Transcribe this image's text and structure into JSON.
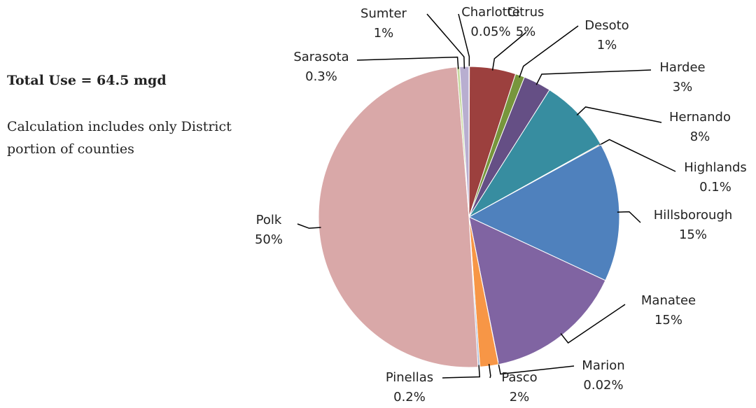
{
  "chart_data": {
    "type": "pie",
    "annotations": [
      "Total Use = 64.5 mgd",
      "Calculation includes only District",
      "portion of counties"
    ],
    "categories": [
      "Charlotte",
      "Citrus",
      "Desoto",
      "Hardee",
      "Hernando",
      "Highlands",
      "Hillsborough",
      "Manatee",
      "Marion",
      "Pasco",
      "Pinellas",
      "Polk",
      "Sarasota",
      "Sumter"
    ],
    "values": [
      0.05,
      5,
      1,
      3,
      8,
      0.1,
      15,
      15,
      0.02,
      2,
      0.2,
      50,
      0.3,
      1
    ],
    "value_labels": [
      "0.05%",
      "5%",
      "1%",
      "3%",
      "8%",
      "0.1%",
      "15%",
      "15%",
      "0.02%",
      "2%",
      "0.2%",
      "50%",
      "0.3%",
      "1%"
    ],
    "colors": [
      "#4f81bd",
      "#9c403e",
      "#77963c",
      "#654f85",
      "#378da0",
      "#c77f36",
      "#4f81bd",
      "#8064a2",
      "#9bbb59",
      "#f79646",
      "#a5b6d4",
      "#d9a8a8",
      "#c6d9a0",
      "#b8aed0"
    ]
  }
}
